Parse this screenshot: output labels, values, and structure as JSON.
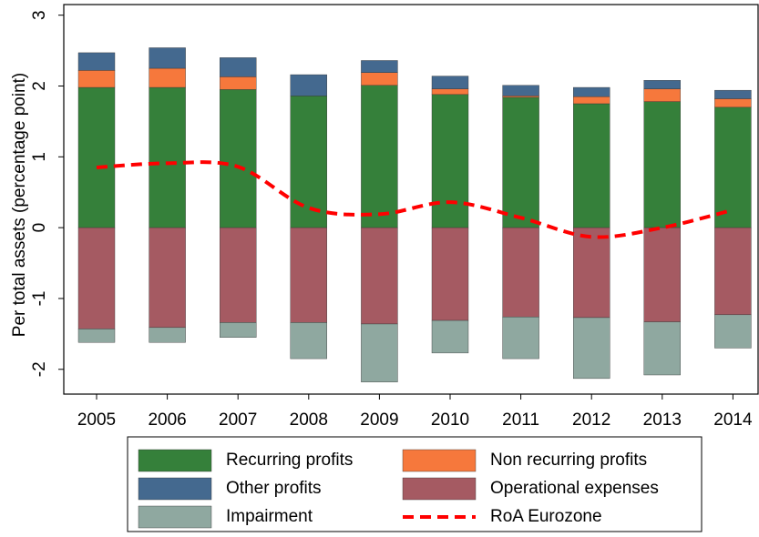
{
  "chart_data": {
    "type": "bar",
    "y_label": "Per total assets (percentage point)",
    "categories": [
      "2005",
      "2006",
      "2007",
      "2008",
      "2009",
      "2010",
      "2011",
      "2012",
      "2013",
      "2014"
    ],
    "series": [
      {
        "name": "Recurring profits",
        "color": "#35803a",
        "values": [
          1.98,
          1.98,
          1.95,
          1.86,
          2.01,
          1.88,
          1.84,
          1.75,
          1.78,
          1.7
        ]
      },
      {
        "name": "Non recurring profits",
        "color": "#f6783c",
        "values": [
          0.24,
          0.27,
          0.18,
          0,
          0.18,
          0.08,
          0.02,
          0.1,
          0.18,
          0.12
        ]
      },
      {
        "name": "Other profits",
        "color": "#44698f",
        "values": [
          0.25,
          0.29,
          0.27,
          0.3,
          0.17,
          0.18,
          0.15,
          0.13,
          0.12,
          0.12
        ]
      },
      {
        "name": "Operational expenses",
        "color": "#a55a62",
        "values": [
          -1.43,
          -1.41,
          -1.34,
          -1.34,
          -1.36,
          -1.31,
          -1.26,
          -1.27,
          -1.33,
          -1.23
        ]
      },
      {
        "name": "Impairment",
        "color": "#8fa8a0",
        "values": [
          -0.19,
          -0.21,
          -0.21,
          -0.51,
          -0.82,
          -0.46,
          -0.59,
          -0.86,
          -0.75,
          -0.47
        ]
      },
      {
        "name": "RoA Eurozone",
        "color": "#ff0000",
        "type": "line",
        "dashed": true,
        "values": [
          0.85,
          0.91,
          0.86,
          0.28,
          0.19,
          0.36,
          0.14,
          -0.13,
          0.0,
          0.25
        ]
      }
    ],
    "ylim": [
      -2.35,
      3.15
    ],
    "yticks": [
      -2,
      -1,
      0,
      1,
      2,
      3
    ]
  }
}
